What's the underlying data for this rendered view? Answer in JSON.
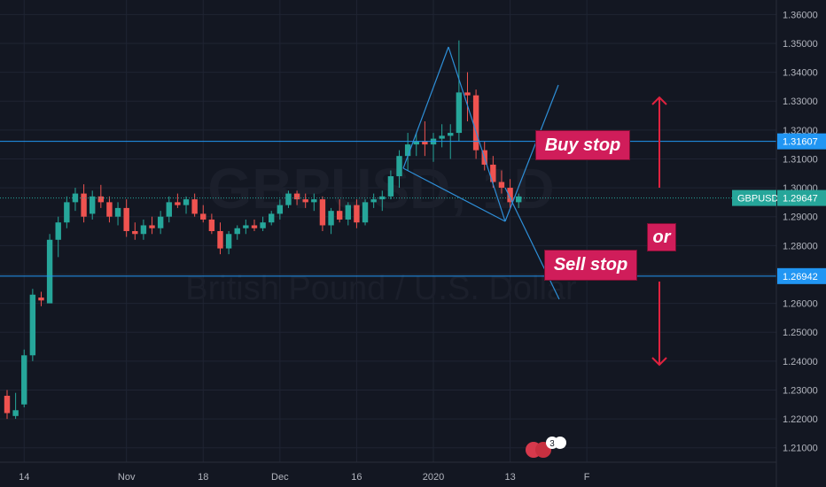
{
  "symbol": "GBPUSD",
  "watermark": {
    "title": "GBPUSD, 1D",
    "subtitle": "British Pound / U.S. Dollar"
  },
  "colors": {
    "up": "#26a69a",
    "down": "#ef5350",
    "line": "#2196f3",
    "pattern": "#2e8fd8",
    "arrow": "#e0223f",
    "note_bg": "#d01d5a",
    "background": "#131722",
    "grid": "#1f2433"
  },
  "annotations": {
    "buy_stop": "Buy stop",
    "or": "or",
    "sell_stop": "Sell stop"
  },
  "price_labels": {
    "buy_stop_level": "1.31607",
    "current": "1.29647",
    "sell_stop_level": "1.26942"
  },
  "events_badge": "3",
  "chart_data": {
    "type": "candlestick",
    "ylim": [
      1.205,
      1.365
    ],
    "y_ticks": [
      "1.21000",
      "1.22000",
      "1.23000",
      "1.24000",
      "1.25000",
      "1.26000",
      "1.27000",
      "1.28000",
      "1.29000",
      "1.30000",
      "1.31000",
      "1.32000",
      "1.33000",
      "1.34000",
      "1.35000",
      "1.36000"
    ],
    "x_ticks": [
      "14",
      "Nov",
      "18",
      "Dec",
      "16",
      "2020",
      "13",
      "F"
    ],
    "x_tick_bars": [
      2,
      14,
      23,
      32,
      41,
      50,
      59,
      68
    ],
    "horizontal_levels": [
      1.31607,
      1.29647,
      1.26942
    ],
    "candles": [
      [
        1.228,
        1.23,
        1.22,
        1.222
      ],
      [
        1.221,
        1.229,
        1.22,
        1.223
      ],
      [
        1.225,
        1.244,
        1.224,
        1.242
      ],
      [
        1.242,
        1.265,
        1.24,
        1.263
      ],
      [
        1.262,
        1.264,
        1.259,
        1.261
      ],
      [
        1.26,
        1.284,
        1.26,
        1.282
      ],
      [
        1.282,
        1.29,
        1.276,
        1.288
      ],
      [
        1.288,
        1.297,
        1.286,
        1.295
      ],
      [
        1.295,
        1.3,
        1.292,
        1.298
      ],
      [
        1.298,
        1.3012,
        1.288,
        1.29
      ],
      [
        1.291,
        1.299,
        1.289,
        1.297
      ],
      [
        1.297,
        1.301,
        1.293,
        1.295
      ],
      [
        1.295,
        1.297,
        1.288,
        1.29
      ],
      [
        1.29,
        1.295,
        1.287,
        1.293
      ],
      [
        1.293,
        1.296,
        1.283,
        1.285
      ],
      [
        1.285,
        1.288,
        1.282,
        1.284
      ],
      [
        1.284,
        1.289,
        1.282,
        1.287
      ],
      [
        1.287,
        1.29,
        1.284,
        1.286
      ],
      [
        1.286,
        1.292,
        1.284,
        1.29
      ],
      [
        1.29,
        1.297,
        1.288,
        1.295
      ],
      [
        1.295,
        1.298,
        1.293,
        1.294
      ],
      [
        1.294,
        1.297,
        1.291,
        1.296
      ],
      [
        1.296,
        1.298,
        1.29,
        1.291
      ],
      [
        1.291,
        1.294,
        1.288,
        1.289
      ],
      [
        1.289,
        1.291,
        1.284,
        1.285
      ],
      [
        1.285,
        1.288,
        1.277,
        1.279
      ],
      [
        1.279,
        1.285,
        1.277,
        1.284
      ],
      [
        1.284,
        1.287,
        1.282,
        1.286
      ],
      [
        1.286,
        1.289,
        1.284,
        1.287
      ],
      [
        1.287,
        1.289,
        1.285,
        1.286
      ],
      [
        1.286,
        1.29,
        1.285,
        1.288
      ],
      [
        1.288,
        1.292,
        1.287,
        1.291
      ],
      [
        1.291,
        1.296,
        1.289,
        1.294
      ],
      [
        1.294,
        1.299,
        1.293,
        1.298
      ],
      [
        1.298,
        1.299,
        1.294,
        1.296
      ],
      [
        1.296,
        1.298,
        1.293,
        1.295
      ],
      [
        1.295,
        1.298,
        1.292,
        1.296
      ],
      [
        1.296,
        1.297,
        1.285,
        1.287
      ],
      [
        1.287,
        1.293,
        1.284,
        1.292
      ],
      [
        1.292,
        1.296,
        1.288,
        1.289
      ],
      [
        1.289,
        1.295,
        1.287,
        1.294
      ],
      [
        1.294,
        1.296,
        1.286,
        1.288
      ],
      [
        1.288,
        1.296,
        1.287,
        1.295
      ],
      [
        1.295,
        1.298,
        1.293,
        1.296
      ],
      [
        1.296,
        1.299,
        1.292,
        1.297
      ],
      [
        1.297,
        1.306,
        1.296,
        1.304
      ],
      [
        1.304,
        1.313,
        1.3,
        1.311
      ],
      [
        1.311,
        1.319,
        1.306,
        1.315
      ],
      [
        1.315,
        1.319,
        1.311,
        1.316
      ],
      [
        1.316,
        1.323,
        1.311,
        1.315
      ],
      [
        1.315,
        1.319,
        1.309,
        1.317
      ],
      [
        1.317,
        1.322,
        1.314,
        1.318
      ],
      [
        1.318,
        1.322,
        1.31,
        1.319
      ],
      [
        1.319,
        1.351,
        1.316,
        1.333
      ],
      [
        1.333,
        1.34,
        1.323,
        1.332
      ],
      [
        1.332,
        1.334,
        1.31,
        1.313
      ],
      [
        1.313,
        1.316,
        1.306,
        1.308
      ],
      [
        1.308,
        1.311,
        1.3,
        1.302
      ],
      [
        1.302,
        1.306,
        1.298,
        1.3
      ],
      [
        1.3,
        1.303,
        1.293,
        1.295
      ],
      [
        1.295,
        1.298,
        1.293,
        1.297
      ]
    ]
  }
}
